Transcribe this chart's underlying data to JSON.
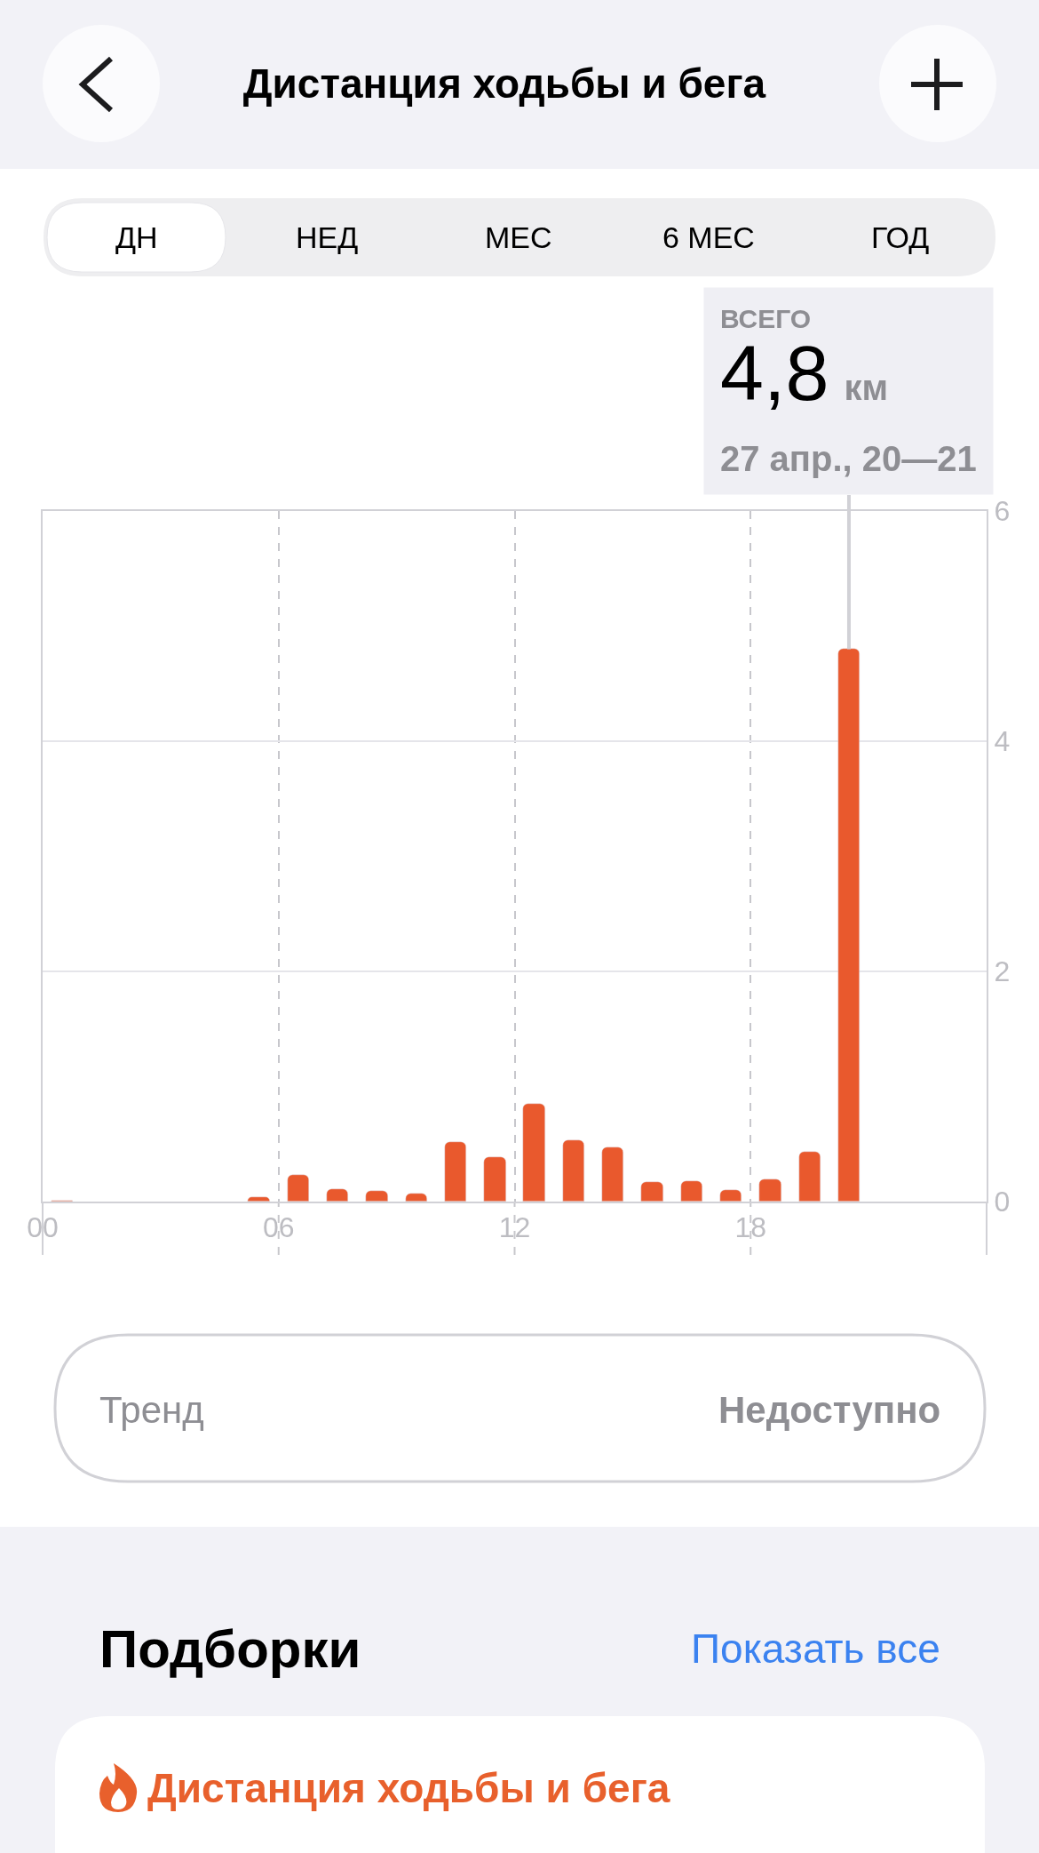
{
  "chart_data": {
    "type": "bar",
    "title": "Дистанция ходьбы и бега",
    "x": [
      0.5,
      1.5,
      2.5,
      3.5,
      4.5,
      5.5,
      6.5,
      7.5,
      8.5,
      9.5,
      10.5,
      11.5,
      12.5,
      13.5,
      14.5,
      15.5,
      16.5,
      17.5,
      18.5,
      19.5,
      20.5
    ],
    "values": [
      0.01,
      null,
      null,
      null,
      null,
      0.04,
      0.23,
      0.11,
      0.09,
      0.07,
      0.52,
      0.39,
      0.85,
      0.53,
      0.47,
      0.17,
      0.18,
      0.1,
      0.19,
      0.43,
      4.8
    ],
    "color": "#e9592d",
    "xlim": [
      0,
      24
    ],
    "xticks": [
      {
        "value": 0,
        "label": "00"
      },
      {
        "value": 6,
        "label": "06"
      },
      {
        "value": 12,
        "label": "12"
      },
      {
        "value": 18,
        "label": "18"
      }
    ],
    "ylim": [
      0,
      6
    ],
    "yticks": [
      0,
      2,
      4,
      6
    ],
    "grid": true,
    "annotations": [
      {
        "text": "ВСЕГО\n4,8 км\n27 апр., 20—21",
        "x": 20.5,
        "y": 4.8
      },
      "ДН",
      "НЕД",
      "МЕС",
      "6 МЕС",
      "ГОД",
      "Тренд",
      "Недоступно",
      "Подборки",
      "Показать все",
      "Дистанция ходьбы и бега"
    ]
  }
}
